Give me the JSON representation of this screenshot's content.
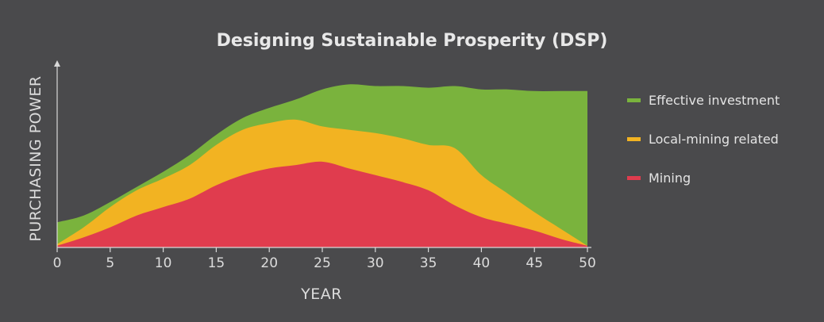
{
  "chart_data": {
    "type": "area",
    "title": "Designing Sustainable Prosperity (DSP)",
    "xlabel": "YEAR",
    "ylabel": "PURCHASING POWER",
    "xlim": [
      0,
      50
    ],
    "ylim": [
      0,
      100
    ],
    "xticks": [
      0,
      5,
      10,
      15,
      20,
      25,
      30,
      35,
      40,
      45,
      50
    ],
    "grid": false,
    "legend_position": "right",
    "x": [
      0,
      2.5,
      5,
      7.5,
      10,
      12.5,
      15,
      17.5,
      20,
      22.5,
      25,
      27.5,
      30,
      32.5,
      35,
      37.5,
      40,
      42.5,
      45,
      47.5,
      50
    ],
    "series": [
      {
        "name": "Mining",
        "color": "#e03c4e",
        "values": [
          1,
          6,
          12,
          19,
          24,
          29,
          37,
          43,
          47,
          49,
          51,
          47,
          43,
          39,
          34,
          25,
          18,
          14,
          10,
          5,
          1
        ]
      },
      {
        "name": "Local-mining related",
        "color": "#f2b322",
        "values": [
          1,
          6,
          12,
          15,
          17,
          20,
          24,
          27,
          27,
          27,
          21,
          23,
          25,
          26,
          27,
          34,
          25,
          18,
          11,
          6,
          0
        ]
      },
      {
        "name": "Effective investment",
        "color": "#7ab33d",
        "values": [
          13,
          7,
          3,
          2,
          4,
          6,
          6,
          7,
          9,
          12,
          22,
          27,
          28,
          31,
          34,
          37,
          51,
          62,
          72,
          82,
          92
        ]
      }
    ]
  }
}
